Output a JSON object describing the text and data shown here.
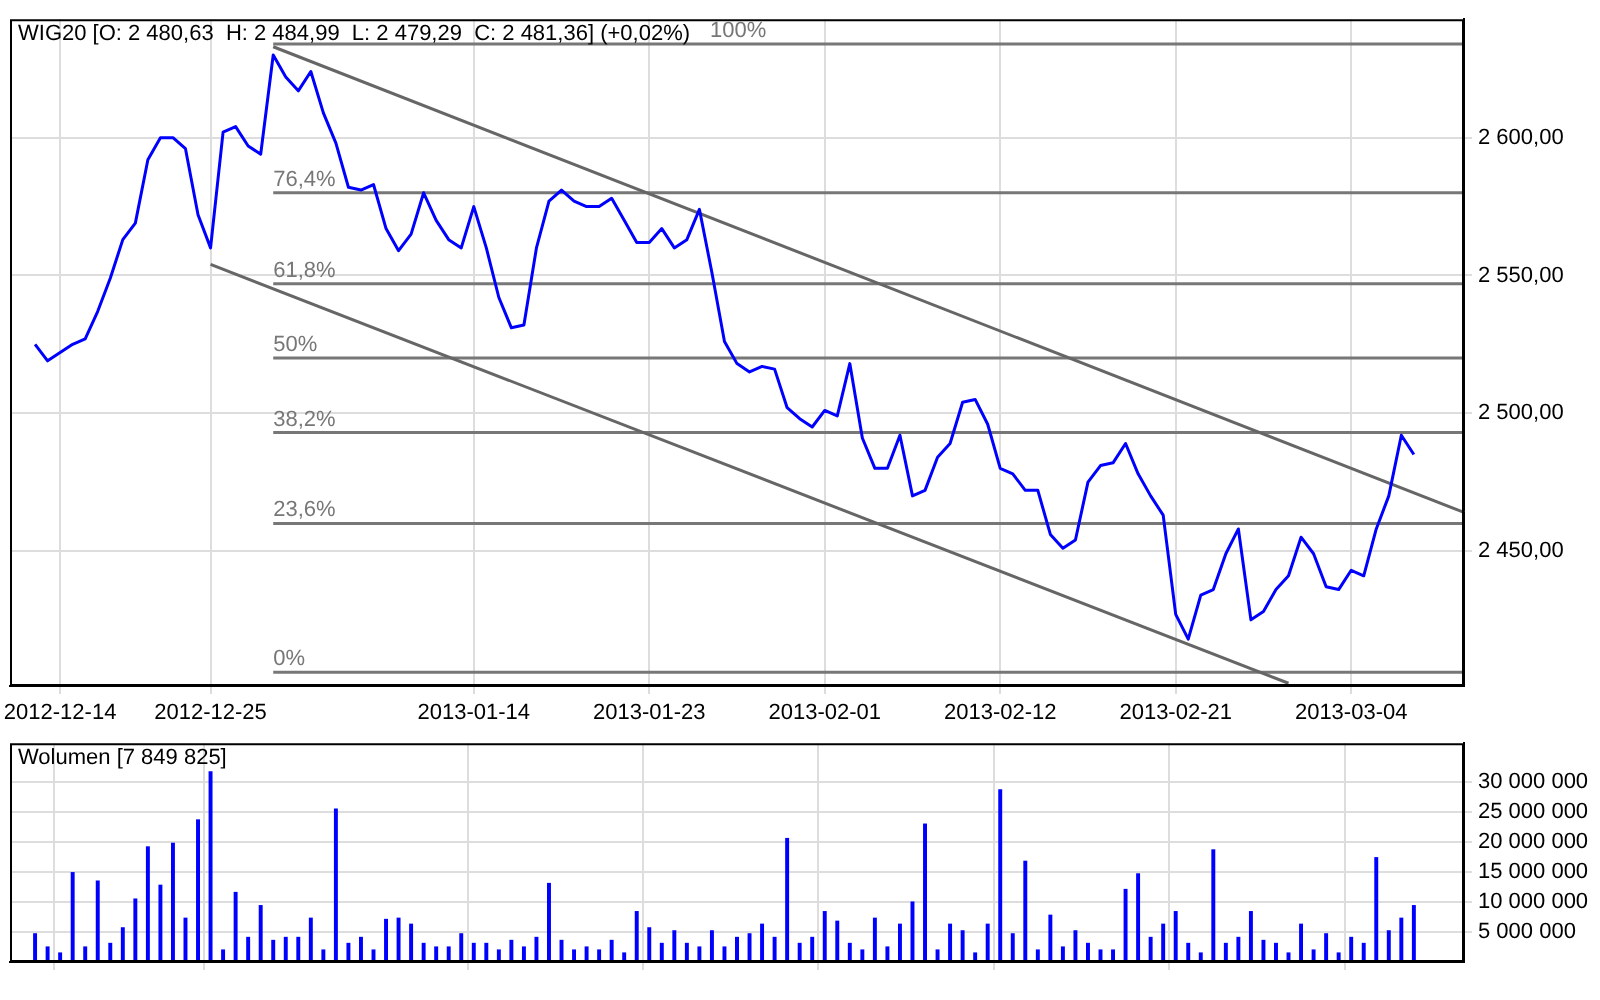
{
  "chart_data": [
    {
      "type": "line",
      "title": "WIG20 [O: 2 480,63  H: 2 484,99  L: 2 479,29  C: 2 481,36] (+0,02%)",
      "categories": [
        null,
        null,
        null,
        null,
        "2012-12-14",
        null,
        null,
        null,
        null,
        null,
        null,
        null,
        null,
        null,
        null,
        null,
        "2012-12-25",
        null,
        null,
        null,
        null,
        null,
        null,
        null,
        null,
        null,
        null,
        null,
        null,
        null,
        null,
        null,
        null,
        null,
        null,
        null,
        null,
        "2013-01-14",
        null,
        null,
        null,
        null,
        null,
        null,
        null,
        null,
        null,
        null,
        null,
        null,
        null,
        "2013-01-23",
        null,
        null,
        null,
        null,
        null,
        null,
        null,
        null,
        null,
        null,
        null,
        null,
        null,
        "2013-02-01",
        null,
        null,
        null,
        null,
        null,
        null,
        null,
        null,
        null,
        null,
        null,
        null,
        null,
        "2013-02-12",
        null,
        null,
        null,
        null,
        null,
        null,
        null,
        null,
        null,
        null,
        null,
        null,
        null,
        "2013-02-21",
        null,
        null,
        null,
        null,
        null,
        null,
        null,
        null,
        null,
        null,
        null,
        null,
        null,
        "2013-03-04",
        null,
        null,
        null,
        null,
        null,
        null,
        null,
        null,
        null
      ],
      "series": [
        {
          "color": "#0000ff",
          "values": [
            null,
            null,
            2525,
            2519,
            2522,
            2525,
            2527,
            2537,
            2549,
            2563,
            2569,
            2592,
            2600,
            2600,
            2596,
            2572,
            2560,
            2602,
            2604,
            2597,
            2594,
            2630,
            2622,
            2617,
            2624,
            2609,
            2598,
            2582,
            2581,
            2583,
            2567,
            2559,
            2565,
            2580,
            2570,
            2563,
            2560,
            2575,
            2560,
            2542,
            2531,
            2532,
            2560,
            2577,
            2581,
            2577,
            2575,
            2575,
            2578,
            2570,
            2562,
            2562,
            2567,
            2560,
            2563,
            2574,
            2551,
            2526,
            2518,
            2515,
            2517,
            2516,
            2502,
            2498,
            2495,
            2501,
            2499,
            2518,
            2491,
            2480,
            2480,
            2492,
            2470,
            2472,
            2484,
            2489,
            2504,
            2505,
            2496,
            2480,
            2478,
            2472,
            2472,
            2456,
            2451,
            2454,
            2475,
            2481,
            2482,
            2489,
            2478,
            2470,
            2463,
            2427,
            2418,
            2434,
            2436,
            2449,
            2458,
            2425,
            2428,
            2436,
            2441,
            2455,
            2449,
            2437,
            2436,
            2443,
            2441,
            2458,
            2470,
            2492,
            2485,
            null,
            null,
            null,
            null
          ]
        },
        {
          "type": "line",
          "color": "#666666",
          "values": [
            null,
            null,
            null,
            null,
            null,
            null,
            null,
            null,
            null,
            null,
            null,
            null,
            null,
            null,
            null,
            null,
            null,
            null,
            null,
            null,
            null,
            2633,
            null,
            null,
            null,
            null,
            null,
            null,
            null,
            null,
            null,
            null,
            null,
            null,
            null,
            null,
            null,
            null,
            null,
            null,
            null,
            null,
            null,
            null,
            null,
            null,
            null,
            null,
            null,
            null,
            null,
            null,
            null,
            null,
            null,
            null,
            null,
            null,
            null,
            null,
            null,
            null,
            null,
            null,
            null,
            null,
            null,
            null,
            null,
            null,
            null,
            null,
            null,
            null,
            null,
            null,
            null,
            null,
            null,
            null,
            null,
            null,
            null,
            null,
            null,
            null,
            null,
            null,
            null,
            null,
            null,
            null,
            null,
            null,
            null,
            null,
            null,
            null,
            null,
            null,
            null,
            null,
            null,
            null,
            null,
            null,
            null,
            null,
            null,
            null,
            null,
            null,
            null,
            null,
            null,
            null,
            2464
          ]
        },
        {
          "type": "line",
          "color": "#666666",
          "values": [
            null,
            null,
            null,
            null,
            null,
            null,
            null,
            null,
            null,
            null,
            null,
            null,
            null,
            null,
            null,
            null,
            2554,
            null,
            null,
            null,
            null,
            null,
            null,
            null,
            null,
            null,
            null,
            null,
            null,
            null,
            null,
            null,
            null,
            null,
            null,
            null,
            null,
            null,
            null,
            null,
            null,
            null,
            null,
            null,
            null,
            null,
            null,
            null,
            null,
            null,
            null,
            null,
            null,
            null,
            null,
            null,
            null,
            null,
            null,
            null,
            null,
            null,
            null,
            null,
            null,
            null,
            null,
            null,
            null,
            null,
            null,
            null,
            null,
            null,
            null,
            null,
            null,
            null,
            null,
            null,
            null,
            null,
            null,
            null,
            null,
            null,
            null,
            null,
            null,
            null,
            null,
            null,
            null,
            null,
            null,
            null,
            null,
            null,
            null,
            null,
            null,
            null,
            2402,
            null,
            null,
            null,
            null,
            null,
            null,
            null,
            null,
            null,
            null,
            null,
            null,
            null,
            null
          ]
        },
        {
          "type": "line",
          "name": "0%",
          "color": "#777777",
          "values": [
            null,
            null,
            null,
            null,
            null,
            null,
            null,
            null,
            null,
            null,
            null,
            null,
            null,
            null,
            null,
            null,
            null,
            null,
            null,
            null,
            null,
            2406,
            null,
            null,
            null,
            null,
            null,
            null,
            null,
            null,
            null,
            null,
            null,
            null,
            null,
            null,
            null,
            null,
            null,
            null,
            null,
            null,
            null,
            null,
            null,
            null,
            null,
            null,
            null,
            null,
            null,
            null,
            null,
            null,
            null,
            null,
            null,
            null,
            null,
            null,
            null,
            null,
            null,
            null,
            null,
            null,
            null,
            null,
            null,
            null,
            null,
            null,
            null,
            null,
            null,
            null,
            null,
            null,
            null,
            null,
            null,
            null,
            null,
            null,
            null,
            null,
            null,
            null,
            null,
            null,
            null,
            null,
            null,
            null,
            null,
            null,
            null,
            null,
            null,
            null,
            null,
            null,
            null,
            null,
            null,
            null,
            null,
            null,
            null,
            null,
            null,
            null,
            null,
            null,
            null,
            null,
            2406
          ]
        },
        {
          "type": "line",
          "name": "23,6%",
          "color": "#777777",
          "values": [
            null,
            null,
            null,
            null,
            null,
            null,
            null,
            null,
            null,
            null,
            null,
            null,
            null,
            null,
            null,
            null,
            null,
            null,
            null,
            null,
            null,
            2460,
            null,
            null,
            null,
            null,
            null,
            null,
            null,
            null,
            null,
            null,
            null,
            null,
            null,
            null,
            null,
            null,
            null,
            null,
            null,
            null,
            null,
            null,
            null,
            null,
            null,
            null,
            null,
            null,
            null,
            null,
            null,
            null,
            null,
            null,
            null,
            null,
            null,
            null,
            null,
            null,
            null,
            null,
            null,
            null,
            null,
            null,
            null,
            null,
            null,
            null,
            null,
            null,
            null,
            null,
            null,
            null,
            null,
            null,
            null,
            null,
            null,
            null,
            null,
            null,
            null,
            null,
            null,
            null,
            null,
            null,
            null,
            null,
            null,
            null,
            null,
            null,
            null,
            null,
            null,
            null,
            null,
            null,
            null,
            null,
            null,
            null,
            null,
            null,
            null,
            null,
            null,
            null,
            null,
            null,
            2460
          ]
        },
        {
          "type": "line",
          "name": "38,2%",
          "color": "#777777",
          "values": [
            null,
            null,
            null,
            null,
            null,
            null,
            null,
            null,
            null,
            null,
            null,
            null,
            null,
            null,
            null,
            null,
            null,
            null,
            null,
            null,
            null,
            2493,
            null,
            null,
            null,
            null,
            null,
            null,
            null,
            null,
            null,
            null,
            null,
            null,
            null,
            null,
            null,
            null,
            null,
            null,
            null,
            null,
            null,
            null,
            null,
            null,
            null,
            null,
            null,
            null,
            null,
            null,
            null,
            null,
            null,
            null,
            null,
            null,
            null,
            null,
            null,
            null,
            null,
            null,
            null,
            null,
            null,
            null,
            null,
            null,
            null,
            null,
            null,
            null,
            null,
            null,
            null,
            null,
            null,
            null,
            null,
            null,
            null,
            null,
            null,
            null,
            null,
            null,
            null,
            null,
            null,
            null,
            null,
            null,
            null,
            null,
            null,
            null,
            null,
            null,
            null,
            null,
            null,
            null,
            null,
            null,
            null,
            null,
            null,
            null,
            null,
            null,
            null,
            null,
            null,
            null,
            2493
          ]
        },
        {
          "type": "line",
          "name": "50%",
          "color": "#777777",
          "values": [
            null,
            null,
            null,
            null,
            null,
            null,
            null,
            null,
            null,
            null,
            null,
            null,
            null,
            null,
            null,
            null,
            null,
            null,
            null,
            null,
            null,
            2520,
            null,
            null,
            null,
            null,
            null,
            null,
            null,
            null,
            null,
            null,
            null,
            null,
            null,
            null,
            null,
            null,
            null,
            null,
            null,
            null,
            null,
            null,
            null,
            null,
            null,
            null,
            null,
            null,
            null,
            null,
            null,
            null,
            null,
            null,
            null,
            null,
            null,
            null,
            null,
            null,
            null,
            null,
            null,
            null,
            null,
            null,
            null,
            null,
            null,
            null,
            null,
            null,
            null,
            null,
            null,
            null,
            null,
            null,
            null,
            null,
            null,
            null,
            null,
            null,
            null,
            null,
            null,
            null,
            null,
            null,
            null,
            null,
            null,
            null,
            null,
            null,
            null,
            null,
            null,
            null,
            null,
            null,
            null,
            null,
            null,
            null,
            null,
            null,
            null,
            null,
            null,
            null,
            null,
            null,
            2520
          ]
        },
        {
          "type": "line",
          "name": "61,8%",
          "color": "#777777",
          "values": [
            null,
            null,
            null,
            null,
            null,
            null,
            null,
            null,
            null,
            null,
            null,
            null,
            null,
            null,
            null,
            null,
            null,
            null,
            null,
            null,
            null,
            2547,
            null,
            null,
            null,
            null,
            null,
            null,
            null,
            null,
            null,
            null,
            null,
            null,
            null,
            null,
            null,
            null,
            null,
            null,
            null,
            null,
            null,
            null,
            null,
            null,
            null,
            null,
            null,
            null,
            null,
            null,
            null,
            null,
            null,
            null,
            null,
            null,
            null,
            null,
            null,
            null,
            null,
            null,
            null,
            null,
            null,
            null,
            null,
            null,
            null,
            null,
            null,
            null,
            null,
            null,
            null,
            null,
            null,
            null,
            null,
            null,
            null,
            null,
            null,
            null,
            null,
            null,
            null,
            null,
            null,
            null,
            null,
            null,
            null,
            null,
            null,
            null,
            null,
            null,
            null,
            null,
            null,
            null,
            null,
            null,
            null,
            null,
            null,
            null,
            null,
            null,
            null,
            null,
            null,
            null,
            2547
          ]
        },
        {
          "type": "line",
          "name": "76,4%",
          "color": "#777777",
          "values": [
            null,
            null,
            null,
            null,
            null,
            null,
            null,
            null,
            null,
            null,
            null,
            null,
            null,
            null,
            null,
            null,
            null,
            null,
            null,
            null,
            null,
            2580,
            null,
            null,
            null,
            null,
            null,
            null,
            null,
            null,
            null,
            null,
            null,
            null,
            null,
            null,
            null,
            null,
            null,
            null,
            null,
            null,
            null,
            null,
            null,
            null,
            null,
            null,
            null,
            null,
            null,
            null,
            null,
            null,
            null,
            null,
            null,
            null,
            null,
            null,
            null,
            null,
            null,
            null,
            null,
            null,
            null,
            null,
            null,
            null,
            null,
            null,
            null,
            null,
            null,
            null,
            null,
            null,
            null,
            null,
            null,
            null,
            null,
            null,
            null,
            null,
            null,
            null,
            null,
            null,
            null,
            null,
            null,
            null,
            null,
            null,
            null,
            null,
            null,
            null,
            null,
            null,
            null,
            null,
            null,
            null,
            null,
            null,
            null,
            null,
            null,
            null,
            null,
            null,
            null,
            null,
            2580
          ]
        },
        {
          "type": "line",
          "name": "100%",
          "color": "#777777",
          "values": [
            null,
            null,
            null,
            null,
            null,
            null,
            null,
            null,
            null,
            null,
            null,
            null,
            null,
            null,
            null,
            null,
            null,
            null,
            null,
            null,
            null,
            2634,
            null,
            null,
            null,
            null,
            null,
            null,
            null,
            null,
            null,
            null,
            null,
            null,
            null,
            null,
            null,
            null,
            null,
            null,
            null,
            null,
            null,
            null,
            null,
            null,
            null,
            null,
            null,
            null,
            null,
            null,
            null,
            null,
            null,
            null,
            null,
            null,
            null,
            null,
            null,
            null,
            null,
            null,
            null,
            null,
            null,
            null,
            null,
            null,
            null,
            null,
            null,
            null,
            null,
            null,
            null,
            null,
            null,
            null,
            null,
            null,
            null,
            null,
            null,
            null,
            null,
            null,
            null,
            null,
            null,
            null,
            null,
            null,
            null,
            null,
            null,
            null,
            null,
            null,
            null,
            null,
            null,
            null,
            null,
            null,
            null,
            null,
            null,
            null,
            null,
            null,
            null,
            null,
            null,
            null,
            2634
          ]
        }
      ],
      "ylim": [
        2401,
        2643
      ],
      "yticks": [
        {
          "value": 2450,
          "label": "2 450,00"
        },
        {
          "value": 2500,
          "label": "2 500,00"
        },
        {
          "value": 2550,
          "label": "2 550,00"
        },
        {
          "value": 2600,
          "label": "2 600,00"
        }
      ],
      "grid": true,
      "legend": false
    },
    {
      "type": "bar",
      "title": "Wolumen [7 849 825]",
      "categories": [
        null,
        null,
        null,
        null,
        "2012-12-14",
        null,
        null,
        null,
        null,
        null,
        null,
        null,
        null,
        null,
        null,
        null,
        "2012-12-25",
        null,
        null,
        null,
        null,
        null,
        null,
        null,
        null,
        null,
        null,
        null,
        null,
        null,
        null,
        null,
        null,
        null,
        null,
        null,
        null,
        "2013-01-14",
        null,
        null,
        null,
        null,
        null,
        null,
        null,
        null,
        null,
        null,
        null,
        null,
        null,
        "2013-01-23",
        null,
        null,
        null,
        null,
        null,
        null,
        null,
        null,
        null,
        null,
        null,
        null,
        null,
        "2013-02-01",
        null,
        null,
        null,
        null,
        null,
        null,
        null,
        null,
        null,
        null,
        null,
        null,
        null,
        "2013-02-12",
        null,
        null,
        null,
        null,
        null,
        null,
        null,
        null,
        null,
        null,
        null,
        null,
        null,
        "2013-02-21",
        null,
        null,
        null,
        null,
        null,
        null,
        null,
        null,
        null,
        null,
        null,
        null,
        null,
        "2013-03-04",
        null,
        null,
        null,
        null,
        null,
        null,
        null,
        null,
        null
      ],
      "values": [
        null,
        null,
        4800000,
        2600000,
        1600000,
        15000000,
        2600000,
        13600000,
        3200000,
        5800000,
        10600000,
        19300000,
        12900000,
        19900000,
        7400000,
        23800000,
        31800000,
        2100000,
        11700000,
        4200000,
        9500000,
        3700000,
        4200000,
        4200000,
        7400000,
        2100000,
        25600000,
        3200000,
        4200000,
        2100000,
        7200000,
        7400000,
        6400000,
        3200000,
        2600000,
        2600000,
        4800000,
        3200000,
        3200000,
        2100000,
        3700000,
        2600000,
        4200000,
        13200000,
        3700000,
        2100000,
        2600000,
        2100000,
        3700000,
        1600000,
        8500000,
        5800000,
        3200000,
        5300000,
        3200000,
        2600000,
        5300000,
        2600000,
        4200000,
        4800000,
        6400000,
        4200000,
        20700000,
        3200000,
        4200000,
        8500000,
        6900000,
        3200000,
        2100000,
        7400000,
        2600000,
        6400000,
        10100000,
        23100000,
        2100000,
        6400000,
        5300000,
        1600000,
        6400000,
        28800000,
        4800000,
        16900000,
        2100000,
        7900000,
        2600000,
        5300000,
        3200000,
        2100000,
        2100000,
        12200000,
        14800000,
        4200000,
        6400000,
        8500000,
        3200000,
        1600000,
        18800000,
        3200000,
        4200000,
        8500000,
        3700000,
        3200000,
        1600000,
        6400000,
        2100000,
        4800000,
        1600000,
        4200000,
        3200000,
        17500000,
        5300000,
        7400000,
        9500000,
        null,
        null,
        null,
        null
      ],
      "color": "#0000ff",
      "ylim": [
        0,
        36500000
      ],
      "yticks": [
        {
          "value": 5000000,
          "label": "5 000 000"
        },
        {
          "value": 10000000,
          "label": "10 000 000"
        },
        {
          "value": 15000000,
          "label": "15 000 000"
        },
        {
          "value": 20000000,
          "label": "20 000 000"
        },
        {
          "value": 25000000,
          "label": "25 000 000"
        },
        {
          "value": 30000000,
          "label": "30 000 000"
        }
      ],
      "grid": true,
      "legend": false,
      "tick_labels": "y"
    }
  ]
}
